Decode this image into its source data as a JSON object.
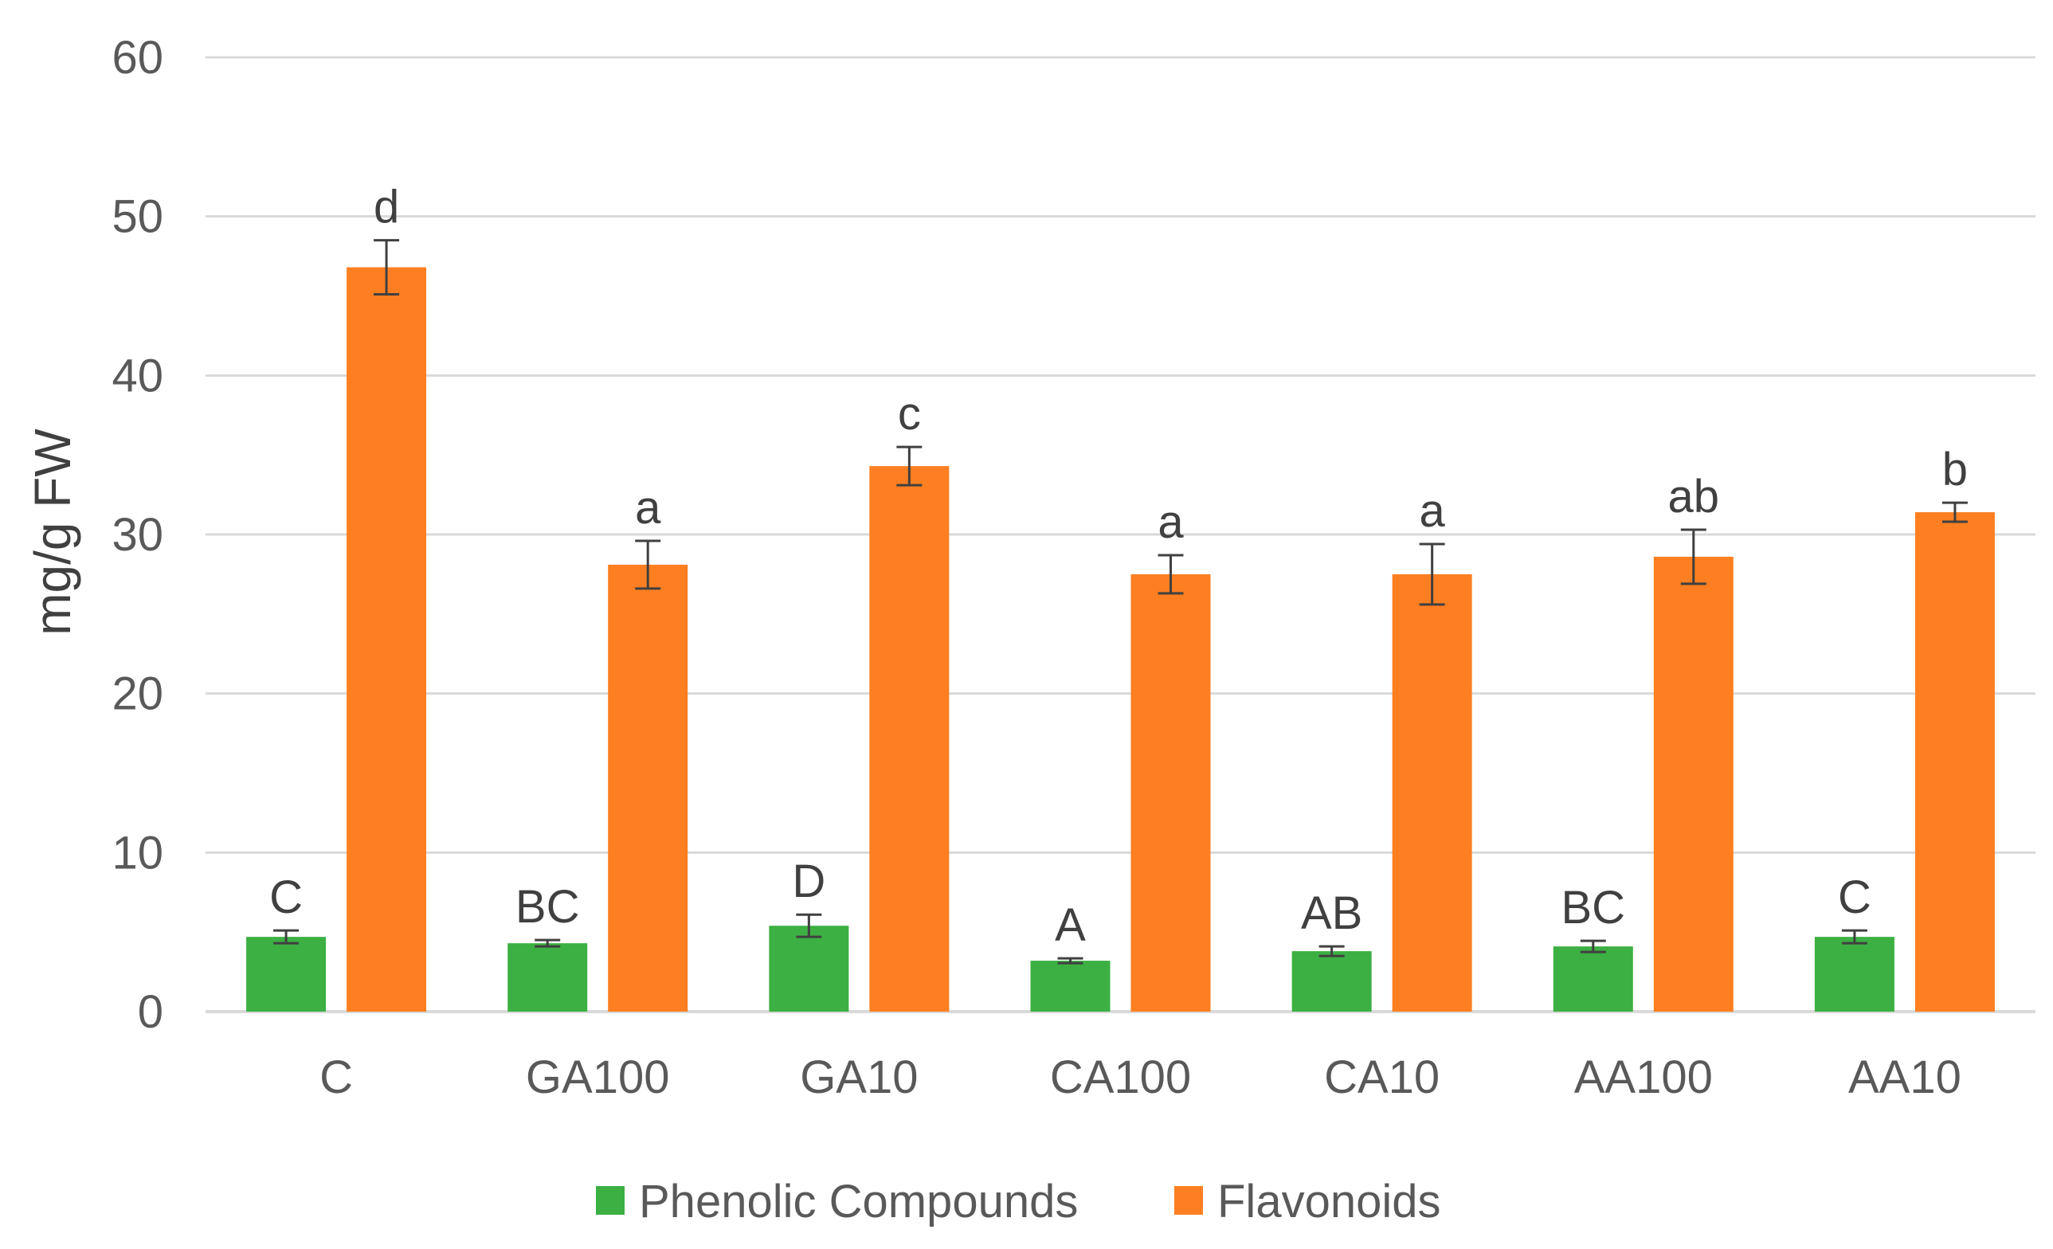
{
  "chart_data": {
    "type": "bar",
    "title": "",
    "xlabel": "",
    "ylabel": "mg/g FW",
    "ylim": [
      0,
      60
    ],
    "yticks": [
      0,
      10,
      20,
      30,
      40,
      50,
      60
    ],
    "grid": true,
    "legend_position": "bottom",
    "categories": [
      "C",
      "GA100",
      "GA10",
      "CA100",
      "CA10",
      "AA100",
      "AA10"
    ],
    "series": [
      {
        "name": "Phenolic Compounds",
        "color": "#3cb043",
        "values": [
          4.7,
          4.3,
          5.4,
          3.2,
          3.8,
          4.1,
          4.7
        ],
        "errors": [
          0.4,
          0.2,
          0.7,
          0.15,
          0.3,
          0.35,
          0.4
        ],
        "letters": [
          "C",
          "BC",
          "D",
          "A",
          "AB",
          "BC",
          "C"
        ]
      },
      {
        "name": "Flavonoids",
        "color": "#fd7f21",
        "values": [
          46.8,
          28.1,
          34.3,
          27.5,
          27.5,
          28.6,
          31.4
        ],
        "errors": [
          1.7,
          1.5,
          1.2,
          1.2,
          1.9,
          1.7,
          0.6
        ],
        "letters": [
          "d",
          "a",
          "c",
          "a",
          "a",
          "ab",
          "b"
        ]
      }
    ]
  }
}
